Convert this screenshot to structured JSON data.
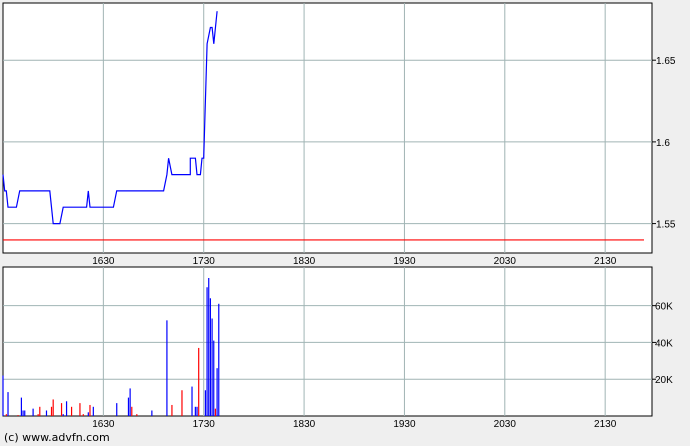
{
  "copyright": "(c) www.advfn.com",
  "colors": {
    "price_line": "#0000ff",
    "reference_line": "#ff0000",
    "grid": "#a0b4b4",
    "volume_up": "#0000ff",
    "volume_down": "#ff0000",
    "volume_neutral": "#00c000"
  },
  "chart_data": [
    {
      "type": "line",
      "x_ticks": [
        "1630",
        "1730",
        "1830",
        "1930",
        "2030",
        "2130"
      ],
      "y_ticks": [
        "1.55",
        "1.6",
        "1.65"
      ],
      "y_tick_values": [
        1.55,
        1.6,
        1.65
      ],
      "xlim": [
        "1530",
        "2158"
      ],
      "ylim": [
        1.532,
        1.685
      ],
      "grid": true,
      "reference_line": 1.54,
      "series": [
        {
          "points": [
            [
              "1530",
              1.58
            ],
            [
              "1531",
              1.57
            ],
            [
              "1532",
              1.57
            ],
            [
              "1533",
              1.56
            ],
            [
              "1538",
              1.56
            ],
            [
              "1540",
              1.57
            ],
            [
              "1558",
              1.57
            ],
            [
              "1600",
              1.55
            ],
            [
              "1604",
              1.55
            ],
            [
              "1606",
              1.56
            ],
            [
              "1620",
              1.56
            ],
            [
              "1621",
              1.57
            ],
            [
              "1622",
              1.56
            ],
            [
              "1636",
              1.56
            ],
            [
              "1638",
              1.57
            ],
            [
              "1706",
              1.57
            ],
            [
              "1708",
              1.58
            ],
            [
              "1708",
              1.58
            ],
            [
              "1709",
              1.59
            ],
            [
              "1711",
              1.58
            ],
            [
              "1722",
              1.58
            ],
            [
              "1722",
              1.59
            ],
            [
              "1725",
              1.59
            ],
            [
              "1726",
              1.58
            ],
            [
              "1728",
              1.58
            ],
            [
              "1729",
              1.59
            ],
            [
              "1730",
              1.59
            ],
            [
              "1732",
              1.66
            ],
            [
              "1734",
              1.67
            ],
            [
              "1735",
              1.67
            ],
            [
              "1736",
              1.66
            ],
            [
              "1738",
              1.68
            ]
          ]
        }
      ]
    },
    {
      "type": "bar",
      "x_ticks": [
        "1630",
        "1730",
        "1830",
        "1930",
        "2030",
        "2130"
      ],
      "y_ticks": [
        "20K",
        "40K",
        "60K"
      ],
      "y_tick_values": [
        20000,
        40000,
        60000
      ],
      "xlim": [
        "1530",
        "2158"
      ],
      "ylim": [
        0,
        81000
      ],
      "grid": true,
      "bars": [
        [
          "1530",
          22000,
          "up"
        ],
        [
          "1532",
          1000,
          "down"
        ],
        [
          "1533",
          13000,
          "up"
        ],
        [
          "1539",
          500,
          "down"
        ],
        [
          "1541",
          10000,
          "up"
        ],
        [
          "1542",
          3000,
          "up"
        ],
        [
          "1543",
          3000,
          "up"
        ],
        [
          "1548",
          4000,
          "up"
        ],
        [
          "1551",
          1000,
          "down"
        ],
        [
          "1552",
          5000,
          "down"
        ],
        [
          "1556",
          3000,
          "up"
        ],
        [
          "1559",
          5000,
          "down"
        ],
        [
          "1600",
          9000,
          "down"
        ],
        [
          "1605",
          7000,
          "down"
        ],
        [
          "1606",
          1000,
          "up"
        ],
        [
          "1608",
          8000,
          "up"
        ],
        [
          "1611",
          5000,
          "down"
        ],
        [
          "1616",
          7000,
          "down"
        ],
        [
          "1618",
          1000,
          "down"
        ],
        [
          "1621",
          2000,
          "up"
        ],
        [
          "1622",
          6000,
          "down"
        ],
        [
          "1624",
          5000,
          "up"
        ],
        [
          "1638",
          7000,
          "up"
        ],
        [
          "1645",
          10000,
          "up"
        ],
        [
          "1646",
          15000,
          "up"
        ],
        [
          "1647",
          5000,
          "down"
        ],
        [
          "1650",
          1000,
          "down"
        ],
        [
          "1659",
          3000,
          "up"
        ],
        [
          "1708",
          52000,
          "up"
        ],
        [
          "1711",
          6000,
          "down"
        ],
        [
          "1717",
          14000,
          "down"
        ],
        [
          "1723",
          16000,
          "up"
        ],
        [
          "1725",
          5000,
          "up"
        ],
        [
          "1726",
          5000,
          "up"
        ],
        [
          "1727",
          37000,
          "down"
        ],
        [
          "1731",
          14000,
          "up"
        ],
        [
          "1732",
          70000,
          "up"
        ],
        [
          "1733",
          75000,
          "up"
        ],
        [
          "1734",
          64000,
          "up"
        ],
        [
          "1735",
          53000,
          "up"
        ],
        [
          "1736",
          41000,
          "up"
        ],
        [
          "1737",
          4000,
          "down"
        ],
        [
          "1738",
          26000,
          "up"
        ],
        [
          "1739",
          61000,
          "up"
        ]
      ]
    }
  ]
}
